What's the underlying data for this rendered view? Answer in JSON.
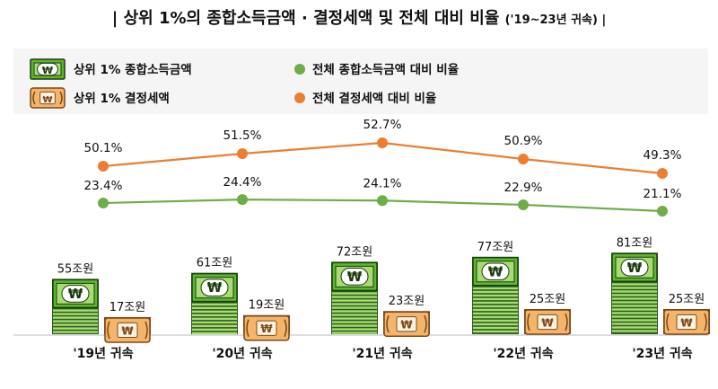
{
  "title": {
    "main": "| 상위 1%의 종합소득금액 · 결정세액 및 전체 대비 비율",
    "sub": "('19~23년 귀속) |"
  },
  "legend": {
    "income": "상위 1% 종합소득금액",
    "tax": "상위 1% 결정세액",
    "income_ratio": "전체 종합소득금액 대비 비율",
    "tax_ratio": "전체 결정세액 대비 비율"
  },
  "colors": {
    "income_ratio_line": "#70ad47",
    "tax_ratio_line": "#ed7d31",
    "money_green": "#5bb82e",
    "money_dark": "#2c5e1c",
    "money_light": "#a8dc73",
    "coin_orange": "#f4b46a",
    "coin_dark": "#7a4a1a",
    "legend_bg": "#f5f5f5"
  },
  "chart_data": {
    "type": "bar+line",
    "categories": [
      "'19년 귀속",
      "'20년 귀속",
      "'21년 귀속",
      "'22년 귀속",
      "'23년 귀속"
    ],
    "bar_series": [
      {
        "name": "상위 1% 종합소득금액",
        "values": [
          55,
          61,
          72,
          77,
          81
        ],
        "labels": [
          "55조원",
          "61조원",
          "72조원",
          "77조원",
          "81조원"
        ]
      },
      {
        "name": "상위 1% 결정세액",
        "values": [
          17,
          19,
          23,
          25,
          25
        ],
        "labels": [
          "17조원",
          "19조원",
          "23조원",
          "25조원",
          "25조원"
        ]
      }
    ],
    "line_series": [
      {
        "name": "전체 결정세액 대비 비율",
        "values": [
          50.1,
          51.5,
          52.7,
          50.9,
          49.3
        ],
        "labels": [
          "50.1%",
          "51.5%",
          "52.7%",
          "50.9%",
          "49.3%"
        ]
      },
      {
        "name": "전체 종합소득금액 대비 비율",
        "values": [
          23.4,
          24.4,
          24.1,
          22.9,
          21.1
        ],
        "labels": [
          "23.4%",
          "24.4%",
          "24.1%",
          "22.9%",
          "21.1%"
        ]
      }
    ]
  }
}
